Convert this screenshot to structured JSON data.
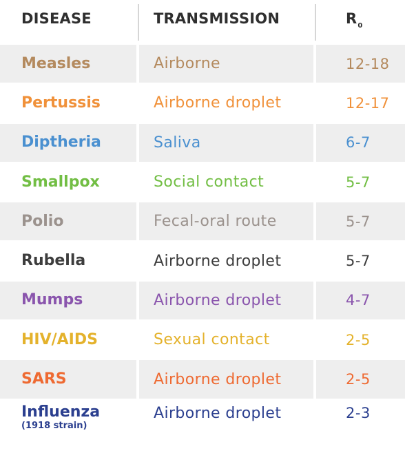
{
  "header": {
    "disease": "DISEASE",
    "transmission": "TRANSMISSION",
    "r0_main": "R",
    "r0_sub": "0"
  },
  "rows": [
    {
      "disease": "Measles",
      "disease_note": "",
      "transmission": "Airborne",
      "r0": "12-18",
      "color": "#b48a5e",
      "shaded": true
    },
    {
      "disease": "Pertussis",
      "disease_note": "",
      "transmission": "Airborne droplet",
      "r0": "12-17",
      "color": "#f0913a",
      "shaded": false
    },
    {
      "disease": "Diptheria",
      "disease_note": "",
      "transmission": "Saliva",
      "r0": "6-7",
      "color": "#4a90d0",
      "shaded": true
    },
    {
      "disease": "Smallpox",
      "disease_note": "",
      "transmission": "Social contact",
      "r0": "5-7",
      "color": "#72be44",
      "shaded": false
    },
    {
      "disease": "Polio",
      "disease_note": "",
      "transmission": "Fecal-oral route",
      "r0": "5-7",
      "color": "#9b928d",
      "shaded": true
    },
    {
      "disease": "Rubella",
      "disease_note": "",
      "transmission": "Airborne droplet",
      "r0": "5-7",
      "color": "#3d3d3d",
      "shaded": false
    },
    {
      "disease": "Mumps",
      "disease_note": "",
      "transmission": "Airborne droplet",
      "r0": "4-7",
      "color": "#8a55ad",
      "shaded": true
    },
    {
      "disease": "HIV/AIDS",
      "disease_note": "",
      "transmission": "Sexual contact",
      "r0": "2-5",
      "color": "#e4b22c",
      "shaded": false
    },
    {
      "disease": "SARS",
      "disease_note": "",
      "transmission": "Airborne droplet",
      "r0": "2-5",
      "color": "#ee6a32",
      "shaded": true
    },
    {
      "disease": "Influenza",
      "disease_note": "(1918 strain)",
      "transmission": "Airborne droplet",
      "r0": "2-3",
      "color": "#2b3f8f",
      "shaded": false
    }
  ]
}
